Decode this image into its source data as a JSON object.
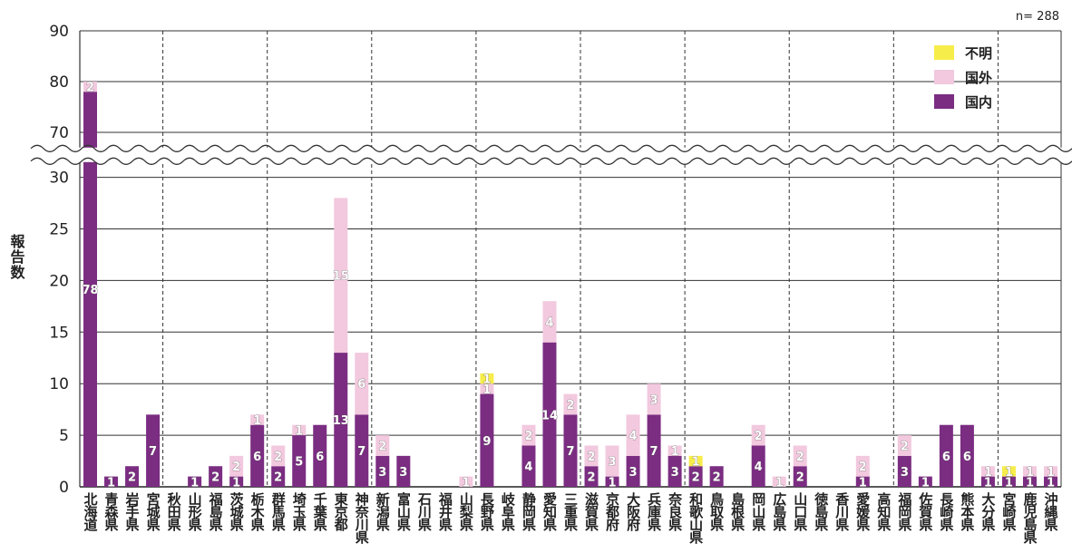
{
  "chart_data": {
    "type": "bar",
    "stacked": true,
    "annotation": "n= 288",
    "ylabel": "報告数",
    "ylim": [
      0,
      90
    ],
    "axis_break": [
      30,
      70
    ],
    "yticks_lower": [
      "0",
      "5",
      "10",
      "15",
      "20",
      "25",
      "30"
    ],
    "yticks_upper": [
      "70",
      "80",
      "90"
    ],
    "grid": true,
    "legend_position": "top-right",
    "categories": [
      "北海道",
      "青森県",
      "岩手県",
      "宮城県",
      "秋田県",
      "山形県",
      "福島県",
      "茨城県",
      "栃木県",
      "群馬県",
      "埼玉県",
      "千葉県",
      "東京都",
      "神奈川県",
      "新潟県",
      "富山県",
      "石川県",
      "福井県",
      "山梨県",
      "長野県",
      "岐阜県",
      "静岡県",
      "愛知県",
      "三重県",
      "滋賀県",
      "京都府",
      "大阪府",
      "兵庫県",
      "奈良県",
      "和歌山県",
      "鳥取県",
      "島根県",
      "岡山県",
      "広島県",
      "山口県",
      "徳島県",
      "香川県",
      "愛媛県",
      "高知県",
      "福岡県",
      "佐賀県",
      "長崎県",
      "熊本県",
      "大分県",
      "宮崎県",
      "鹿児島県",
      "沖縄県"
    ],
    "series": [
      {
        "name": "国内",
        "color": "#7b2d82",
        "values": [
          78,
          1,
          2,
          7,
          0,
          1,
          2,
          1,
          6,
          2,
          5,
          6,
          13,
          7,
          3,
          3,
          0,
          0,
          0,
          9,
          0,
          4,
          14,
          7,
          2,
          1,
          3,
          7,
          3,
          2,
          2,
          0,
          4,
          0,
          2,
          0,
          0,
          1,
          0,
          3,
          1,
          6,
          6,
          1,
          1,
          1,
          1
        ]
      },
      {
        "name": "国外",
        "color": "#f2c9de",
        "values": [
          2,
          0,
          0,
          0,
          0,
          0,
          0,
          2,
          1,
          2,
          1,
          0,
          15,
          6,
          2,
          0,
          0,
          0,
          1,
          1,
          0,
          2,
          4,
          2,
          2,
          3,
          4,
          3,
          1,
          0,
          0,
          0,
          2,
          1,
          2,
          0,
          0,
          2,
          0,
          2,
          0,
          0,
          0,
          1,
          0,
          1,
          1
        ]
      },
      {
        "name": "不明",
        "color": "#f7ed4a",
        "values": [
          0,
          0,
          0,
          0,
          0,
          0,
          0,
          0,
          0,
          0,
          0,
          0,
          0,
          0,
          0,
          0,
          0,
          0,
          0,
          1,
          0,
          0,
          0,
          0,
          0,
          0,
          0,
          0,
          0,
          1,
          0,
          0,
          0,
          0,
          0,
          0,
          0,
          0,
          0,
          0,
          0,
          0,
          0,
          0,
          1,
          0,
          0
        ]
      }
    ]
  }
}
